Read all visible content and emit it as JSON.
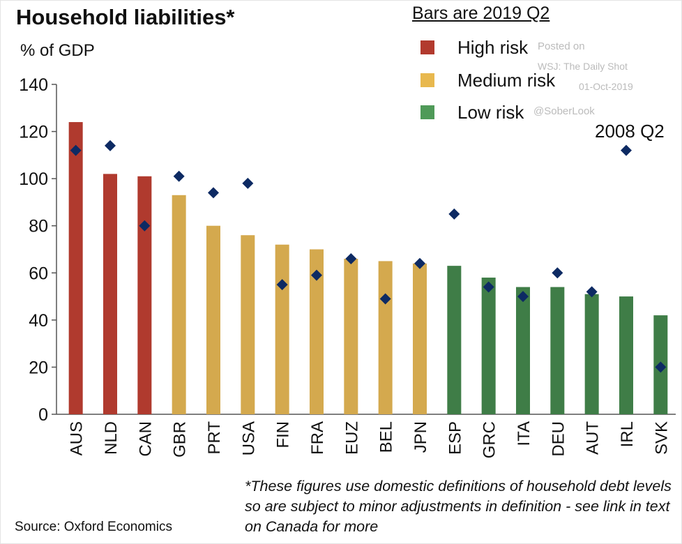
{
  "chart_data": {
    "type": "bar",
    "title": "Household liabilities*",
    "ylabel": "% of GDP",
    "ylim": [
      0,
      140
    ],
    "yticks": [
      0,
      20,
      40,
      60,
      80,
      100,
      120,
      140
    ],
    "grid": false,
    "legend_title": "Bars are 2019 Q2",
    "legend_position": "top-right",
    "categories": [
      "AUS",
      "NLD",
      "CAN",
      "GBR",
      "PRT",
      "USA",
      "FIN",
      "FRA",
      "EUZ",
      "BEL",
      "JPN",
      "ESP",
      "GRC",
      "ITA",
      "DEU",
      "AUT",
      "IRL",
      "SVK"
    ],
    "risk": [
      "High",
      "High",
      "High",
      "Medium",
      "Medium",
      "Medium",
      "Medium",
      "Medium",
      "Medium",
      "Medium",
      "Medium",
      "Low",
      "Low",
      "Low",
      "Low",
      "Low",
      "Low",
      "Low"
    ],
    "series": [
      {
        "name": "Bars are 2019 Q2",
        "type": "bar",
        "values": [
          124,
          102,
          101,
          93,
          80,
          76,
          72,
          70,
          66,
          65,
          64,
          63,
          58,
          54,
          54,
          51,
          50,
          42
        ]
      },
      {
        "name": "2008 Q2",
        "type": "scatter",
        "marker": "diamond",
        "color": "#0d2a63",
        "values": [
          112,
          114,
          80,
          101,
          94,
          98,
          55,
          59,
          66,
          49,
          64,
          85,
          54,
          50,
          60,
          52,
          112,
          20
        ]
      }
    ],
    "risk_legend": [
      {
        "label": "High risk",
        "color": "#b23a2e"
      },
      {
        "label": "Medium risk",
        "color": "#d4a94e"
      },
      {
        "label": "Low risk",
        "color": "#3f7d47"
      }
    ],
    "annotations": {
      "diamond_label": "2008 Q2",
      "source": "Source: Oxford Economics",
      "footnote": "*These figures use domestic definitions of household debt levels so are subject to minor adjustments in definition - see link in text on Canada for more",
      "watermark": [
        "Posted on",
        "WSJ: The Daily Shot",
        "01-Oct-2019",
        "@SoberLook"
      ]
    }
  }
}
